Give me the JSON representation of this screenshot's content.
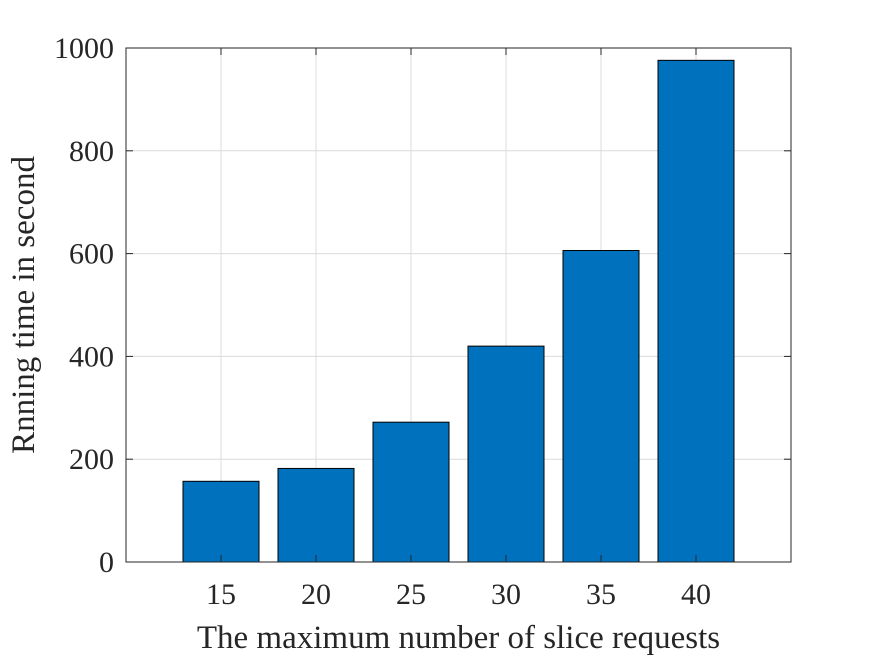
{
  "chart_data": {
    "type": "bar",
    "categories": [
      "15",
      "20",
      "25",
      "30",
      "35",
      "40"
    ],
    "values": [
      157,
      182,
      272,
      420,
      606,
      976
    ],
    "xlabel": "The maximum number of slice requests",
    "ylabel": "Rnning time in second",
    "xlim": [
      10,
      45
    ],
    "ylim": [
      0,
      1000
    ],
    "yticks": [
      0,
      200,
      400,
      600,
      800,
      1000
    ],
    "grid": true,
    "bar_color": "#0072BD",
    "bar_edge_color": "#000000",
    "grid_color": "#dcdcdc",
    "axis_color": "#262626"
  }
}
